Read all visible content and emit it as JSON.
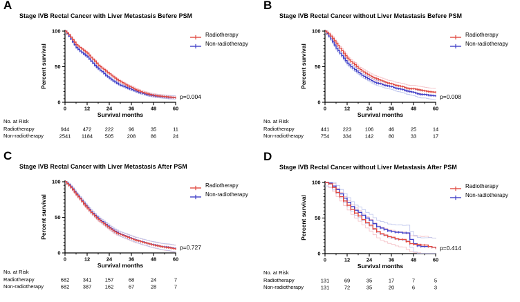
{
  "figure": {
    "background": "#ffffff",
    "text_color": "#000000",
    "colors": {
      "radiotherapy": "#e04a42",
      "non_radiotherapy": "#4040c8",
      "radiotherapy_ci": "#f3bcc2",
      "non_radiotherapy_ci": "#b9c1ec"
    }
  },
  "chart_data": [
    {
      "type": "line",
      "subtype": "kaplan_meier_survival",
      "panel_letter": "A",
      "title": "Stage IVB Rectal Cancer with Liver Metastasis Befere PSM",
      "xlabel": "Survival months",
      "ylabel": "Percent survival",
      "xlim": [
        0,
        60
      ],
      "ylim": [
        0,
        100
      ],
      "x_ticks": [
        0,
        12,
        24,
        36,
        48,
        60
      ],
      "y_ticks": [
        0,
        50,
        100
      ],
      "grid": false,
      "legend_position": "upper right",
      "p_value_label": "p=0.004",
      "ci_half_width": 2,
      "x": [
        0,
        2,
        4,
        6,
        8,
        10,
        12,
        14,
        16,
        18,
        20,
        22,
        24,
        26,
        28,
        30,
        32,
        34,
        36,
        38,
        40,
        42,
        44,
        46,
        48,
        50,
        52,
        54,
        56,
        58,
        60
      ],
      "series": [
        {
          "name": "Radiotherapy",
          "color": "#e04a42",
          "ci_color": "#f3bcc2",
          "values": [
            100,
            95,
            88,
            81,
            77,
            73,
            69,
            63,
            58,
            52,
            48,
            44,
            40,
            36,
            32,
            29,
            26,
            23,
            21,
            18,
            16,
            14,
            12.5,
            11,
            10,
            9,
            8.5,
            8,
            7.5,
            7,
            6.5
          ]
        },
        {
          "name": "Non-radiotherapy",
          "color": "#4040c8",
          "ci_color": "#b9c1ec",
          "values": [
            100,
            93,
            85,
            77,
            72,
            68,
            64,
            58,
            52,
            47,
            43,
            38,
            34,
            30,
            27,
            24,
            22,
            20,
            18,
            16,
            14,
            12.5,
            11,
            10,
            9,
            8.5,
            8,
            7.5,
            7,
            6.8,
            6.5
          ]
        }
      ],
      "risk_table": {
        "header": "No. at Risk",
        "at_months": [
          0,
          12,
          24,
          36,
          48,
          60
        ],
        "rows": [
          {
            "label": "Radiotherapy",
            "values": [
              944,
              472,
              222,
              96,
              35,
              11
            ]
          },
          {
            "label": "Non-radiotherapy",
            "values": [
              2541,
              1184,
              505,
              208,
              86,
              24
            ]
          }
        ]
      }
    },
    {
      "type": "line",
      "subtype": "kaplan_meier_survival",
      "panel_letter": "B",
      "title": "Stage IVB Rectal Cancer without Liver Metastasis Befere PSM",
      "xlabel": "Survival months",
      "ylabel": "Percent survival",
      "xlim": [
        0,
        60
      ],
      "ylim": [
        0,
        100
      ],
      "x_ticks": [
        0,
        12,
        24,
        36,
        48,
        60
      ],
      "y_ticks": [
        0,
        50,
        100
      ],
      "grid": false,
      "legend_position": "upper right",
      "p_value_label": "p=0.008",
      "ci_half_width": 4.5,
      "x": [
        0,
        2,
        4,
        6,
        8,
        10,
        12,
        14,
        16,
        18,
        20,
        22,
        24,
        26,
        28,
        30,
        32,
        34,
        36,
        38,
        40,
        42,
        44,
        46,
        48,
        50,
        52,
        54,
        56,
        58,
        60
      ],
      "series": [
        {
          "name": "Radiotherapy",
          "color": "#e04a42",
          "ci_color": "#f3bcc2",
          "values": [
            100,
            96,
            90,
            83,
            76,
            69,
            62,
            57,
            53,
            48,
            44,
            41,
            38,
            35,
            33,
            31,
            29,
            27,
            26,
            24,
            23,
            22,
            20,
            19,
            19,
            18,
            17,
            16,
            15,
            14.5,
            14
          ]
        },
        {
          "name": "Non-radiotherapy",
          "color": "#4040c8",
          "ci_color": "#b9c1ec",
          "values": [
            100,
            93,
            85,
            76,
            69,
            62,
            55,
            50,
            46,
            42,
            38,
            35,
            32,
            29,
            27,
            26,
            24,
            23,
            22,
            20,
            19,
            18,
            16,
            15,
            14,
            12,
            11,
            11,
            10,
            9.5,
            9
          ]
        }
      ],
      "risk_table": {
        "header": "No. at Risk",
        "at_months": [
          0,
          12,
          24,
          36,
          48,
          60
        ],
        "rows": [
          {
            "label": "Radiotherapy",
            "values": [
              441,
              223,
              106,
              46,
              25,
              14
            ]
          },
          {
            "label": "Non-radiotherapy",
            "values": [
              754,
              334,
              142,
              80,
              33,
              17
            ]
          }
        ]
      }
    },
    {
      "type": "line",
      "subtype": "kaplan_meier_survival",
      "panel_letter": "C",
      "title": "Stage IVB Rectal Cancer with Liver Metastasis After PSM",
      "xlabel": "Survival months",
      "ylabel": "Percent survival",
      "xlim": [
        0,
        60
      ],
      "ylim": [
        0,
        100
      ],
      "x_ticks": [
        0,
        12,
        24,
        36,
        48,
        60
      ],
      "y_ticks": [
        0,
        50,
        100
      ],
      "grid": false,
      "legend_position": "upper right",
      "p_value_label": "p=0.727",
      "ci_half_width": 4,
      "x": [
        0,
        2,
        4,
        6,
        8,
        10,
        12,
        14,
        16,
        18,
        20,
        22,
        24,
        26,
        28,
        30,
        32,
        34,
        36,
        38,
        40,
        42,
        44,
        46,
        48,
        50,
        52,
        54,
        56,
        58,
        60
      ],
      "series": [
        {
          "name": "Radiotherapy",
          "color": "#e04a42",
          "ci_color": "#f3bcc2",
          "values": [
            100,
            95,
            89,
            82,
            76,
            69,
            63,
            57,
            52,
            47,
            43,
            39,
            35,
            31,
            28,
            26,
            24,
            22,
            20,
            18,
            17,
            15,
            14,
            12.5,
            11,
            10,
            9,
            8,
            7.5,
            6.5,
            5.5
          ]
        },
        {
          "name": "Non-radiotherapy",
          "color": "#4040c8",
          "ci_color": "#b9c1ec",
          "values": [
            100,
            96,
            90,
            83,
            77,
            70,
            64,
            58,
            53,
            48,
            44,
            40,
            36,
            32,
            29,
            26.5,
            24.5,
            22.5,
            20.5,
            18.5,
            17,
            15.5,
            14,
            12.5,
            11.5,
            10.5,
            9,
            8.5,
            8,
            7,
            6
          ]
        }
      ],
      "risk_table": {
        "header": "No. at Risk",
        "at_months": [
          0,
          12,
          24,
          36,
          48,
          60
        ],
        "rows": [
          {
            "label": "Radiotherapy",
            "values": [
              682,
              341,
              157,
              68,
              24,
              7
            ]
          },
          {
            "label": "Non-radiotherapy",
            "values": [
              682,
              387,
              162,
              67,
              28,
              7
            ]
          }
        ]
      }
    },
    {
      "type": "line",
      "subtype": "kaplan_meier_survival",
      "panel_letter": "D",
      "title": "Stage IVB Rectal Cancer without Liver Metastasis After PSM",
      "xlabel": "Survival months",
      "ylabel": "Percent survival",
      "xlim": [
        0,
        60
      ],
      "ylim": [
        0,
        100
      ],
      "x_ticks": [
        0,
        12,
        24,
        36,
        48,
        60
      ],
      "y_ticks": [
        0,
        50,
        100
      ],
      "grid": false,
      "legend_position": "upper right",
      "p_value_label": "p=0.414",
      "ci_half_width": 11,
      "x": [
        0,
        2,
        4,
        6,
        8,
        10,
        12,
        14,
        16,
        18,
        20,
        22,
        24,
        26,
        28,
        30,
        32,
        34,
        36,
        38,
        40,
        42,
        44,
        46,
        48,
        50,
        52,
        54,
        56,
        58,
        60
      ],
      "series": [
        {
          "name": "Radiotherapy",
          "color": "#e04a42",
          "ci_color": "#f3bcc2",
          "values": [
            100,
            98,
            93,
            86,
            80,
            74,
            68,
            62,
            57,
            53,
            48,
            44,
            40,
            35,
            31,
            28,
            26,
            24,
            23,
            21,
            20,
            20,
            17,
            14,
            13,
            13,
            12,
            12,
            10,
            9,
            8
          ]
        },
        {
          "name": "Non-radiotherapy",
          "color": "#4040c8",
          "ci_color": "#b9c1ec",
          "values": [
            100,
            99,
            95,
            90,
            84,
            78,
            72,
            66,
            61,
            58,
            54,
            50,
            47,
            42,
            38,
            36,
            34,
            32,
            31,
            30,
            30,
            29,
            29,
            20,
            14,
            11,
            10,
            10,
            10,
            9,
            8
          ]
        }
      ],
      "risk_table": {
        "header": "No. at Risk",
        "at_months": [
          0,
          12,
          24,
          36,
          48,
          60
        ],
        "rows": [
          {
            "label": "Radiotherapy",
            "values": [
              131,
              69,
              35,
              17,
              7,
              5
            ]
          },
          {
            "label": "Non-radiotherapy",
            "values": [
              131,
              72,
              35,
              20,
              6,
              3
            ]
          }
        ]
      }
    }
  ]
}
